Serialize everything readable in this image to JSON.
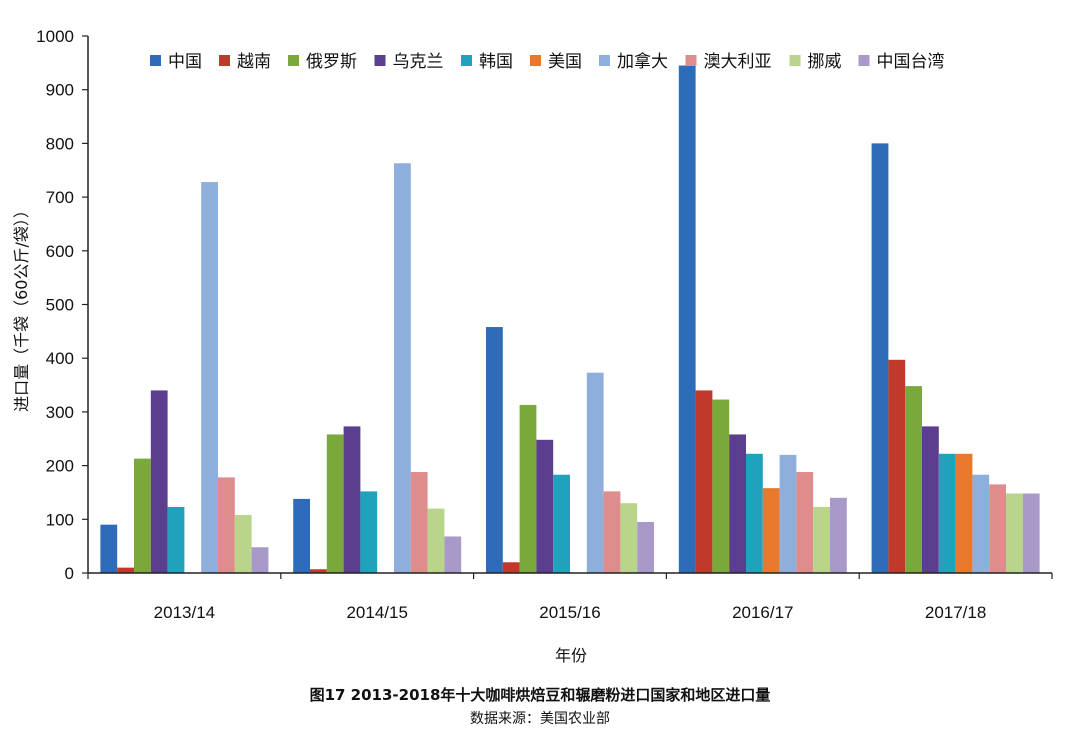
{
  "chart_data": {
    "type": "bar",
    "title": "图17  2013-2018年十大咖啡烘焙豆和辗磨粉进口国家和地区进口量",
    "source": "数据来源：美国农业部",
    "xlabel": "年份",
    "ylabel": "进口量（千袋（60公斤/袋））",
    "ylim": [
      0,
      1000
    ],
    "yticks": [
      0,
      100,
      200,
      300,
      400,
      500,
      600,
      700,
      800,
      900,
      1000
    ],
    "categories": [
      "2013/14",
      "2014/15",
      "2015/16",
      "2016/17",
      "2017/18"
    ],
    "legend_position": "top",
    "grid": false,
    "series": [
      {
        "name": "中国",
        "color": "#2E6BB8",
        "values": [
          90,
          138,
          458,
          945,
          800
        ]
      },
      {
        "name": "越南",
        "color": "#C0392B",
        "values": [
          10,
          7,
          20,
          340,
          397
        ]
      },
      {
        "name": "俄罗斯",
        "color": "#7BA83A",
        "values": [
          213,
          258,
          313,
          323,
          348
        ]
      },
      {
        "name": "乌克兰",
        "color": "#5B3F8E",
        "values": [
          340,
          273,
          248,
          258,
          273
        ]
      },
      {
        "name": "韩国",
        "color": "#1FA2BC",
        "values": [
          123,
          152,
          183,
          222,
          222
        ]
      },
      {
        "name": "美国",
        "color": "#E8792B",
        "values": [
          0,
          0,
          0,
          158,
          222
        ]
      },
      {
        "name": "加拿大",
        "color": "#8EAEDC",
        "values": [
          728,
          763,
          373,
          220,
          183
        ]
      },
      {
        "name": "澳大利亚",
        "color": "#DE8C8C",
        "values": [
          178,
          188,
          152,
          188,
          165
        ]
      },
      {
        "name": "挪威",
        "color": "#B9D58A",
        "values": [
          108,
          120,
          130,
          123,
          148
        ]
      },
      {
        "name": "中国台湾",
        "color": "#A899C9",
        "values": [
          48,
          68,
          95,
          140,
          148
        ]
      }
    ]
  }
}
